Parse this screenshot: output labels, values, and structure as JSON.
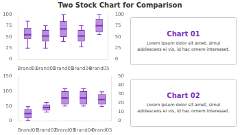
{
  "chart_data": [
    {
      "type": "box",
      "title": "Two Stock Chart for Comparison",
      "categories": [
        "Brand01",
        "Brand02",
        "Brand03",
        "Brand04",
        "Brand05"
      ],
      "opens": [
        45,
        40,
        50,
        40,
        60
      ],
      "closes": [
        70,
        65,
        85,
        65,
        90
      ],
      "highs": [
        85,
        75,
        100,
        75,
        100
      ],
      "lows": [
        25,
        25,
        40,
        28,
        55
      ],
      "medians": [
        55,
        52,
        68,
        52,
        75
      ],
      "color": "#7b2fbe",
      "ylim": [
        0,
        100
      ],
      "yticks": [
        0,
        25,
        50,
        75,
        100
      ],
      "y2lim": [
        0,
        100
      ],
      "y2ticks": [
        0,
        25,
        50,
        75,
        100
      ],
      "grid": false,
      "annotations": [
        "Chart 01",
        "Lorem ipsum dolor sit amet, simul\nadolescens ei vis, id hac ornem interesset."
      ]
    },
    {
      "type": "box",
      "categories": [
        "Brand01",
        "Brand02",
        "Brand03",
        "Brand04",
        "Brand05"
      ],
      "opens": [
        10,
        35,
        55,
        55,
        55
      ],
      "closes": [
        40,
        55,
        100,
        100,
        90
      ],
      "highs": [
        48,
        62,
        108,
        108,
        98
      ],
      "lows": [
        2,
        30,
        50,
        50,
        48
      ],
      "medians": [
        25,
        45,
        77,
        77,
        72
      ],
      "color": "#7b2fbe",
      "ylim": [
        0,
        150
      ],
      "yticks": [
        0,
        50,
        100,
        150
      ],
      "y2lim": [
        0,
        50
      ],
      "y2ticks": [
        0,
        10,
        20,
        30,
        40,
        50
      ],
      "grid": false,
      "annotations": [
        "Chart 02",
        "Lorem ipsum dolor sit amet, simul\nadolescens ei vis, id hac ornem interesset."
      ]
    }
  ]
}
